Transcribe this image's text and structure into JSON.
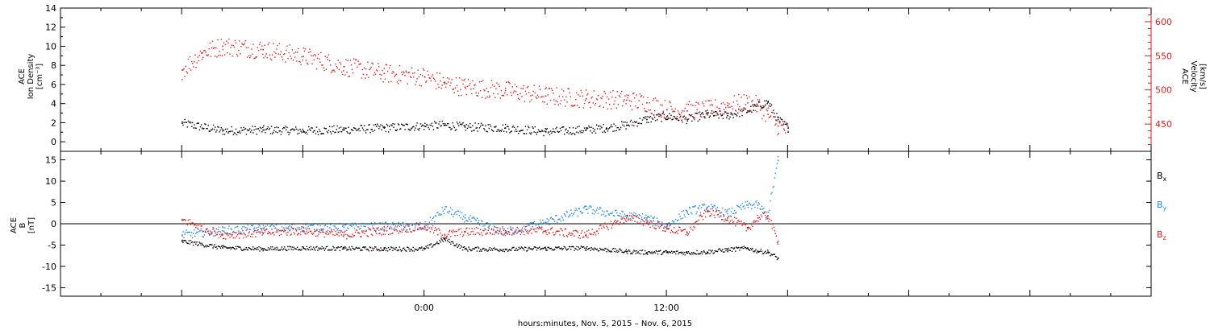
{
  "chart_data": [
    {
      "type": "scatter",
      "panel": "top",
      "left_axis": {
        "label_lines": [
          "ACE",
          "Ion Density",
          "[cm⁻³]"
        ],
        "ylim": [
          -1,
          14
        ],
        "ticks": [
          "0",
          "2",
          "4",
          "6",
          "8",
          "10",
          "12",
          "14"
        ],
        "color": "#000000"
      },
      "right_axis": {
        "label_lines": [
          "ACE",
          "Velocity",
          "[km/s]"
        ],
        "ylim": [
          410,
          620
        ],
        "ticks": [
          "450",
          "500",
          "550",
          "600"
        ],
        "color": "#e31a1c"
      },
      "series": [
        {
          "axis": "left",
          "color": "#000000",
          "x": [
            -12,
            -10,
            -8,
            -6,
            -4,
            -2,
            0,
            1,
            2,
            4,
            6,
            8,
            9,
            10,
            11,
            12,
            13,
            14,
            15,
            16,
            16.5,
            17,
            17.5,
            18
          ],
          "y": [
            2.0,
            1.2,
            1.3,
            1.2,
            1.3,
            1.5,
            1.7,
            1.8,
            1.6,
            1.5,
            1.1,
            1.3,
            1.5,
            1.8,
            2.4,
            2.7,
            2.4,
            2.9,
            2.8,
            3.3,
            3.8,
            4.2,
            2.4,
            1.5
          ]
        },
        {
          "axis": "right",
          "color": "#e31a1c",
          "x": [
            -12,
            -11,
            -10,
            -8,
            -6,
            -4,
            -2,
            0,
            1,
            2,
            4,
            6,
            8,
            10,
            11,
            12,
            13,
            14,
            15,
            16,
            16.5,
            17,
            17.5,
            18
          ],
          "y": [
            530,
            555,
            565,
            560,
            550,
            535,
            525,
            520,
            510,
            505,
            500,
            492,
            488,
            486,
            482,
            472,
            470,
            471,
            478,
            482,
            478,
            465,
            448,
            440
          ]
        }
      ]
    },
    {
      "type": "scatter",
      "panel": "bottom",
      "left_axis": {
        "label_lines": [
          "ACE",
          "B",
          "[nT]"
        ],
        "ylim": [
          -17,
          17
        ],
        "ticks": [
          "-15",
          "-10",
          "-5",
          "0",
          "5",
          "10",
          "15"
        ]
      },
      "series": [
        {
          "name": "Bx",
          "color": "#000000",
          "x": [
            -12,
            -10,
            -8,
            -6,
            -4,
            -2,
            0,
            1,
            2,
            4,
            6,
            8,
            10,
            11,
            12,
            13,
            14,
            15,
            16,
            16.5,
            17,
            17.5
          ],
          "y": [
            -4,
            -5.5,
            -5.8,
            -5.6,
            -5.7,
            -5.8,
            -5.8,
            -3.5,
            -5.8,
            -5.9,
            -5.7,
            -5.6,
            -6.4,
            -6.6,
            -6.6,
            -6.7,
            -6.5,
            -6.0,
            -5.6,
            -6.3,
            -6.5,
            -8.0
          ]
        },
        {
          "name": "By",
          "color": "#1f8ce6",
          "x": [
            -12,
            -10,
            -8,
            -6,
            -4,
            -2,
            0,
            1,
            2,
            4,
            6,
            8,
            10,
            11,
            12,
            13,
            14,
            15,
            16,
            16.5,
            17,
            17.5
          ],
          "y": [
            -2.5,
            -1.5,
            -1.0,
            -0.8,
            -0.7,
            -0.5,
            -0.5,
            3.5,
            1.5,
            -2.0,
            0.5,
            3.5,
            2.0,
            1.5,
            -0.5,
            3.0,
            4.0,
            2.5,
            4.5,
            4.5,
            2.0,
            15.0
          ]
        },
        {
          "name": "Bz",
          "color": "#e31a1c",
          "x": [
            -12,
            -10,
            -8,
            -6,
            -4,
            -2,
            0,
            1,
            2,
            4,
            6,
            8,
            10,
            11,
            12,
            13,
            14,
            15,
            16,
            16.5,
            17,
            17.5
          ],
          "y": [
            1.0,
            -2.5,
            -2.0,
            -1.5,
            -2.5,
            -1.5,
            -0.5,
            -2.5,
            -1.8,
            -1.5,
            -1.5,
            -2.5,
            1.5,
            0.5,
            -1.0,
            -2.0,
            3.0,
            1.5,
            -1.0,
            1.5,
            2.0,
            -4.0
          ]
        }
      ]
    }
  ],
  "x_axis": {
    "range_hours": [
      -18,
      36
    ],
    "tick_labels": [
      {
        "hours": 0,
        "label": "0:00"
      },
      {
        "hours": 12,
        "label": "12:00"
      }
    ],
    "label": "hours:minutes, Nov.  5, 2015 – Nov.  6, 2015"
  }
}
